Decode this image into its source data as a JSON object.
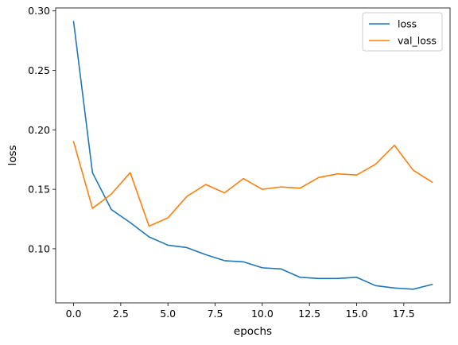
{
  "chart_data": {
    "type": "line",
    "xlabel": "epochs",
    "ylabel": "loss",
    "xlim": [
      -0.95,
      19.95
    ],
    "ylim": [
      0.0545,
      0.3025
    ],
    "x_ticks": [
      0.0,
      2.5,
      5.0,
      7.5,
      10.0,
      12.5,
      15.0,
      17.5
    ],
    "x_tick_labels": [
      "0.0",
      "2.5",
      "5.0",
      "7.5",
      "10.0",
      "12.5",
      "15.0",
      "17.5"
    ],
    "y_ticks": [
      0.1,
      0.15,
      0.2,
      0.25,
      0.3
    ],
    "y_tick_labels": [
      "0.10",
      "0.15",
      "0.20",
      "0.25",
      "0.30"
    ],
    "legend_position": "top-right",
    "grid": false,
    "x": [
      0,
      1,
      2,
      3,
      4,
      5,
      6,
      7,
      8,
      9,
      10,
      11,
      12,
      13,
      14,
      15,
      16,
      17,
      18,
      19
    ],
    "series": [
      {
        "name": "loss",
        "color": "#1f77b4",
        "values": [
          0.291,
          0.164,
          0.133,
          0.122,
          0.11,
          0.103,
          0.101,
          0.095,
          0.09,
          0.089,
          0.084,
          0.083,
          0.076,
          0.075,
          0.075,
          0.076,
          0.069,
          0.067,
          0.066,
          0.07
        ]
      },
      {
        "name": "val_loss",
        "color": "#ff7f0e",
        "values": [
          0.19,
          0.134,
          0.146,
          0.164,
          0.119,
          0.126,
          0.144,
          0.154,
          0.147,
          0.159,
          0.15,
          0.152,
          0.151,
          0.16,
          0.163,
          0.162,
          0.171,
          0.187,
          0.166,
          0.156
        ]
      }
    ]
  }
}
